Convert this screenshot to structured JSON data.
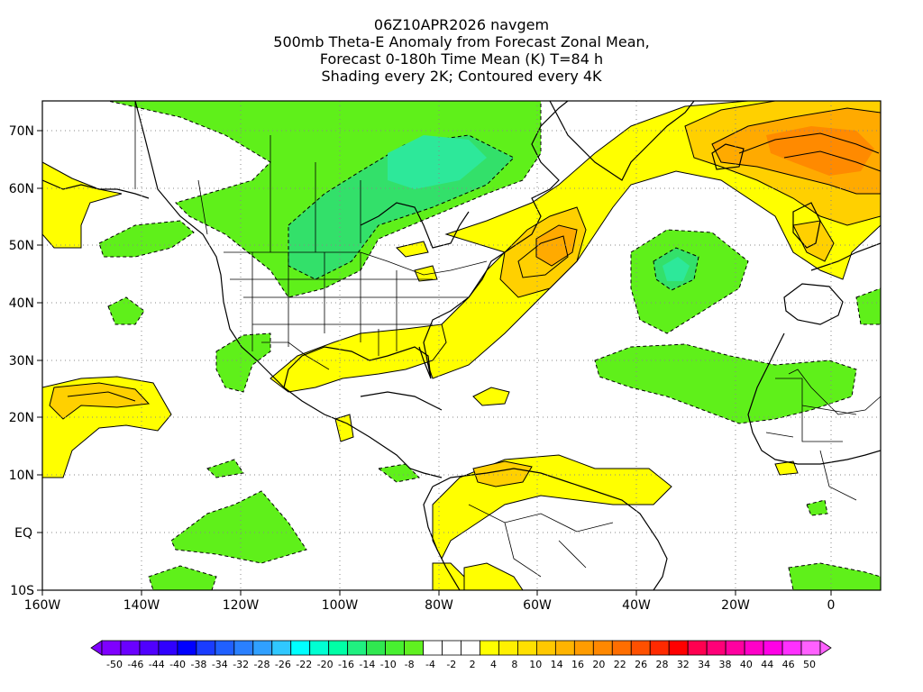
{
  "title": {
    "line1": "06Z10APR2026 navgem",
    "line2": "500mb Theta-E Anomaly from Forecast Zonal Mean,",
    "line3": "Forecast 0-180h Time Mean (K) T=84 h",
    "line4": "Shading every 2K; Contoured every 4K"
  },
  "lat_labels": [
    "70N",
    "60N",
    "50N",
    "40N",
    "30N",
    "20N",
    "10N",
    "EQ",
    "10S"
  ],
  "lon_labels": [
    "160W",
    "140W",
    "120W",
    "100W",
    "80W",
    "60W",
    "40W",
    "20W",
    "0"
  ],
  "colorbar": {
    "colors": [
      "#7f00ff",
      "#6a00ff",
      "#5000ff",
      "#3000ff",
      "#0000ff",
      "#1a3cff",
      "#2060ff",
      "#2a80ff",
      "#30a0ff",
      "#30c8ff",
      "#00ffff",
      "#00ffd2",
      "#00ffa6",
      "#20f080",
      "#30e850",
      "#48f030",
      "#60f020",
      "#ffffff",
      "#ffffff",
      "#ffffff",
      "#ffff00",
      "#fff000",
      "#ffe000",
      "#ffc800",
      "#ffb400",
      "#ff9c00",
      "#ff8800",
      "#ff6e00",
      "#ff5000",
      "#ff2a00",
      "#ff0000",
      "#ff0050",
      "#ff0078",
      "#ff00a0",
      "#ff00c8",
      "#ff00e6",
      "#ff30ff",
      "#ff60ff"
    ],
    "labels": [
      "-50",
      "-46",
      "-44",
      "-40",
      "-38",
      "-34",
      "-32",
      "-28",
      "-26",
      "-22",
      "-20",
      "-16",
      "-14",
      "-10",
      "-8",
      "-4",
      "-2",
      "2",
      "4",
      "8",
      "10",
      "14",
      "16",
      "20",
      "22",
      "26",
      "28",
      "32",
      "34",
      "38",
      "40",
      "44",
      "46",
      "50"
    ]
  },
  "legend_colors": {
    "green": "#5ff01a",
    "green_dark": "#33e06a",
    "teal": "#2de89a",
    "yellow": "#ffff00",
    "yellow_orange": "#ffd000",
    "orange": "#ffaa00",
    "dark_orange": "#ff8a00"
  }
}
